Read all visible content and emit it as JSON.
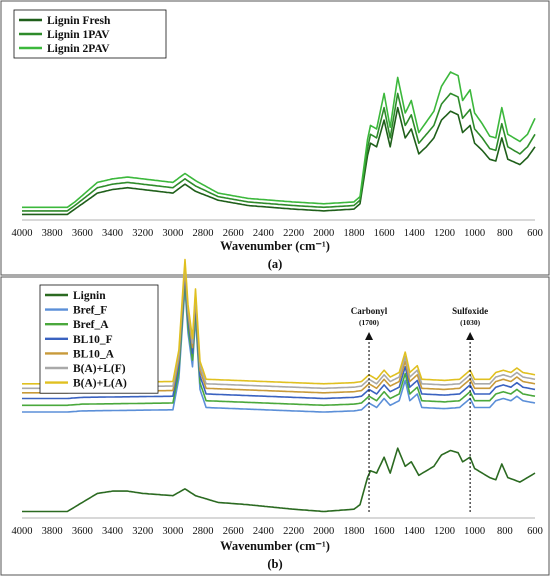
{
  "chart_data": [
    {
      "panel": "(a)",
      "type": "line",
      "xlabel": "Wavenumber (cm⁻¹)",
      "ylabel": "",
      "xlim": [
        4000,
        600
      ],
      "x_reversed": true,
      "x_ticks": [
        4000,
        3800,
        3600,
        3400,
        3200,
        3000,
        2800,
        2600,
        2400,
        2200,
        2000,
        1800,
        1600,
        1400,
        1200,
        1000,
        800,
        600
      ],
      "ylim": [
        0,
        1
      ],
      "grid": false,
      "legend": "top-left",
      "series": [
        {
          "name": "Lignin Fresh",
          "color": "#1f5f1a",
          "points": [
            [
              4000,
              0.02
            ],
            [
              3700,
              0.02
            ],
            [
              3650,
              0.05
            ],
            [
              3500,
              0.14
            ],
            [
              3400,
              0.16
            ],
            [
              3300,
              0.17
            ],
            [
              3200,
              0.16
            ],
            [
              3000,
              0.14
            ],
            [
              2920,
              0.19
            ],
            [
              2850,
              0.15
            ],
            [
              2700,
              0.1
            ],
            [
              2500,
              0.07
            ],
            [
              2200,
              0.05
            ],
            [
              2000,
              0.04
            ],
            [
              1800,
              0.05
            ],
            [
              1760,
              0.08
            ],
            [
              1710,
              0.35
            ],
            [
              1690,
              0.42
            ],
            [
              1650,
              0.4
            ],
            [
              1600,
              0.55
            ],
            [
              1560,
              0.4
            ],
            [
              1510,
              0.62
            ],
            [
              1460,
              0.45
            ],
            [
              1420,
              0.5
            ],
            [
              1370,
              0.36
            ],
            [
              1320,
              0.4
            ],
            [
              1270,
              0.45
            ],
            [
              1220,
              0.55
            ],
            [
              1160,
              0.6
            ],
            [
              1110,
              0.58
            ],
            [
              1080,
              0.48
            ],
            [
              1030,
              0.52
            ],
            [
              1000,
              0.42
            ],
            [
              950,
              0.38
            ],
            [
              900,
              0.33
            ],
            [
              860,
              0.32
            ],
            [
              820,
              0.45
            ],
            [
              780,
              0.33
            ],
            [
              700,
              0.3
            ],
            [
              650,
              0.34
            ],
            [
              600,
              0.4
            ]
          ]
        },
        {
          "name": "Lignin 1PAV",
          "color": "#2e8b2a",
          "points": [
            [
              4000,
              0.04
            ],
            [
              3700,
              0.04
            ],
            [
              3650,
              0.07
            ],
            [
              3500,
              0.17
            ],
            [
              3400,
              0.19
            ],
            [
              3300,
              0.2
            ],
            [
              3200,
              0.19
            ],
            [
              3000,
              0.17
            ],
            [
              2920,
              0.22
            ],
            [
              2850,
              0.18
            ],
            [
              2700,
              0.12
            ],
            [
              2500,
              0.09
            ],
            [
              2200,
              0.07
            ],
            [
              2000,
              0.06
            ],
            [
              1800,
              0.07
            ],
            [
              1760,
              0.1
            ],
            [
              1710,
              0.39
            ],
            [
              1690,
              0.47
            ],
            [
              1650,
              0.45
            ],
            [
              1600,
              0.62
            ],
            [
              1560,
              0.45
            ],
            [
              1510,
              0.7
            ],
            [
              1460,
              0.52
            ],
            [
              1420,
              0.58
            ],
            [
              1370,
              0.42
            ],
            [
              1320,
              0.47
            ],
            [
              1270,
              0.52
            ],
            [
              1220,
              0.64
            ],
            [
              1160,
              0.7
            ],
            [
              1110,
              0.68
            ],
            [
              1080,
              0.56
            ],
            [
              1030,
              0.61
            ],
            [
              1000,
              0.5
            ],
            [
              950,
              0.45
            ],
            [
              900,
              0.39
            ],
            [
              860,
              0.38
            ],
            [
              820,
              0.53
            ],
            [
              780,
              0.4
            ],
            [
              700,
              0.36
            ],
            [
              650,
              0.4
            ],
            [
              600,
              0.47
            ]
          ]
        },
        {
          "name": "Lignin 2PAV",
          "color": "#3cb83c",
          "points": [
            [
              4000,
              0.06
            ],
            [
              3700,
              0.06
            ],
            [
              3650,
              0.09
            ],
            [
              3500,
              0.2
            ],
            [
              3400,
              0.22
            ],
            [
              3300,
              0.23
            ],
            [
              3200,
              0.22
            ],
            [
              3000,
              0.2
            ],
            [
              2920,
              0.25
            ],
            [
              2850,
              0.21
            ],
            [
              2700,
              0.14
            ],
            [
              2500,
              0.11
            ],
            [
              2200,
              0.09
            ],
            [
              2000,
              0.08
            ],
            [
              1800,
              0.09
            ],
            [
              1760,
              0.12
            ],
            [
              1710,
              0.44
            ],
            [
              1690,
              0.52
            ],
            [
              1650,
              0.5
            ],
            [
              1600,
              0.7
            ],
            [
              1560,
              0.51
            ],
            [
              1510,
              0.79
            ],
            [
              1460,
              0.59
            ],
            [
              1420,
              0.66
            ],
            [
              1370,
              0.48
            ],
            [
              1320,
              0.54
            ],
            [
              1270,
              0.6
            ],
            [
              1220,
              0.74
            ],
            [
              1160,
              0.82
            ],
            [
              1110,
              0.8
            ],
            [
              1080,
              0.66
            ],
            [
              1030,
              0.72
            ],
            [
              1000,
              0.59
            ],
            [
              950,
              0.53
            ],
            [
              900,
              0.46
            ],
            [
              860,
              0.45
            ],
            [
              820,
              0.62
            ],
            [
              780,
              0.47
            ],
            [
              700,
              0.43
            ],
            [
              650,
              0.47
            ],
            [
              600,
              0.56
            ]
          ]
        }
      ]
    },
    {
      "panel": "(b)",
      "type": "line",
      "xlabel": "Wavenumber (cm⁻¹)",
      "ylabel": "",
      "xlim": [
        4000,
        600
      ],
      "x_reversed": true,
      "x_ticks": [
        4000,
        3800,
        3600,
        3400,
        3200,
        3000,
        2800,
        2600,
        2400,
        2200,
        2000,
        1800,
        1600,
        1400,
        1200,
        1000,
        800,
        600
      ],
      "ylim": [
        0,
        1
      ],
      "grid": false,
      "legend": "top-left",
      "annotations": [
        {
          "label": "Carbonyl",
          "sub": "(1700)",
          "x": 1700
        },
        {
          "label": "Sulfoxide",
          "sub": "(1030)",
          "x": 1030
        }
      ],
      "base_profile": [
        [
          4000,
          0.0
        ],
        [
          3700,
          0.0
        ],
        [
          3600,
          0.005
        ],
        [
          3000,
          0.01
        ],
        [
          2960,
          0.15
        ],
        [
          2920,
          0.55
        ],
        [
          2900,
          0.35
        ],
        [
          2870,
          0.2
        ],
        [
          2850,
          0.42
        ],
        [
          2820,
          0.1
        ],
        [
          2780,
          0.02
        ],
        [
          2200,
          0.005
        ],
        [
          2000,
          0.0
        ],
        [
          1800,
          0.005
        ],
        [
          1750,
          0.01
        ],
        [
          1700,
          0.04
        ],
        [
          1650,
          0.02
        ],
        [
          1600,
          0.06
        ],
        [
          1560,
          0.03
        ],
        [
          1500,
          0.05
        ],
        [
          1460,
          0.14
        ],
        [
          1430,
          0.05
        ],
        [
          1380,
          0.08
        ],
        [
          1350,
          0.02
        ],
        [
          1200,
          0.015
        ],
        [
          1100,
          0.02
        ],
        [
          1030,
          0.06
        ],
        [
          1000,
          0.02
        ],
        [
          900,
          0.02
        ],
        [
          860,
          0.05
        ],
        [
          810,
          0.06
        ],
        [
          760,
          0.05
        ],
        [
          720,
          0.07
        ],
        [
          680,
          0.05
        ],
        [
          600,
          0.04
        ]
      ],
      "series": [
        {
          "name": "Lignin",
          "color": "#2b6a21",
          "offset": 0,
          "points": [
            [
              4000,
              0.02
            ],
            [
              3700,
              0.02
            ],
            [
              3650,
              0.04
            ],
            [
              3500,
              0.1
            ],
            [
              3400,
              0.11
            ],
            [
              3300,
              0.11
            ],
            [
              3200,
              0.1
            ],
            [
              3000,
              0.09
            ],
            [
              2920,
              0.12
            ],
            [
              2850,
              0.09
            ],
            [
              2700,
              0.06
            ],
            [
              2500,
              0.05
            ],
            [
              2200,
              0.03
            ],
            [
              2000,
              0.02
            ],
            [
              1800,
              0.03
            ],
            [
              1760,
              0.05
            ],
            [
              1710,
              0.17
            ],
            [
              1690,
              0.2
            ],
            [
              1650,
              0.19
            ],
            [
              1600,
              0.26
            ],
            [
              1560,
              0.19
            ],
            [
              1510,
              0.3
            ],
            [
              1460,
              0.22
            ],
            [
              1420,
              0.24
            ],
            [
              1370,
              0.18
            ],
            [
              1320,
              0.2
            ],
            [
              1270,
              0.22
            ],
            [
              1220,
              0.27
            ],
            [
              1160,
              0.29
            ],
            [
              1110,
              0.28
            ],
            [
              1080,
              0.24
            ],
            [
              1030,
              0.26
            ],
            [
              1000,
              0.21
            ],
            [
              950,
              0.19
            ],
            [
              900,
              0.17
            ],
            [
              860,
              0.16
            ],
            [
              820,
              0.23
            ],
            [
              780,
              0.17
            ],
            [
              700,
              0.15
            ],
            [
              650,
              0.17
            ],
            [
              600,
              0.19
            ]
          ]
        },
        {
          "name": "Bref_F",
          "color": "#5b8fd8",
          "offset": 0.46
        },
        {
          "name": "Bref_A",
          "color": "#4aa83c",
          "offset": 0.49
        },
        {
          "name": "BL10_F",
          "color": "#3a62c0",
          "offset": 0.52
        },
        {
          "name": "BL10_A",
          "color": "#c89a3a",
          "offset": 0.545
        },
        {
          "name": "B(A)+L(F)",
          "color": "#a9a9a9",
          "offset": 0.565
        },
        {
          "name": "B(A)+L(A)",
          "color": "#e0c020",
          "offset": 0.585
        }
      ]
    }
  ]
}
